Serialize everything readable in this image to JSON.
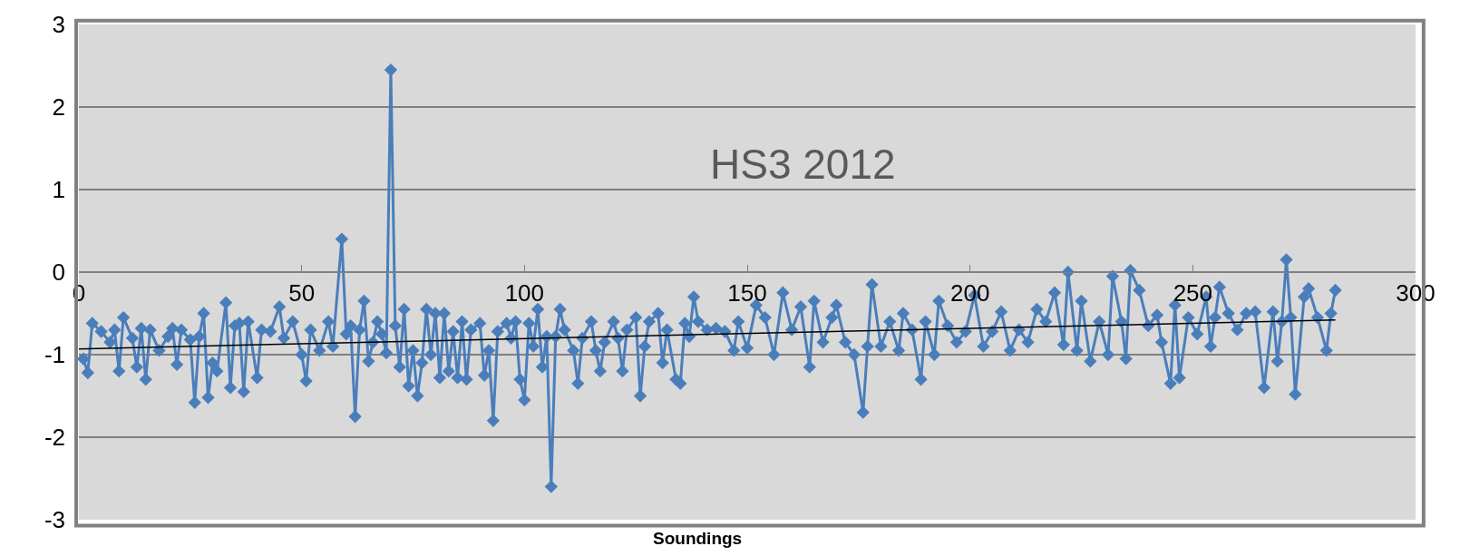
{
  "chart_data": {
    "type": "line",
    "title": "HS3 2012",
    "xlabel": "Soundings",
    "xlim": [
      0,
      300
    ],
    "xticks": [
      0,
      50,
      100,
      150,
      200,
      250,
      300
    ],
    "ylim": [
      -3,
      3
    ],
    "yticks": [
      -3,
      -2,
      -1,
      0,
      1,
      2,
      3
    ],
    "grid": "y",
    "series": [
      {
        "marker": "diamond",
        "color": "#4a7ebb",
        "x": [
          1,
          2,
          3,
          5,
          7,
          8,
          9,
          10,
          12,
          13,
          14,
          15,
          16,
          18,
          20,
          21,
          22,
          23,
          25,
          26,
          27,
          28,
          29,
          30,
          31,
          33,
          34,
          35,
          36,
          37,
          38,
          40,
          41,
          43,
          45,
          46,
          48,
          50,
          51,
          52,
          54,
          56,
          57,
          59,
          60,
          61,
          62,
          63,
          64,
          65,
          66,
          67,
          68,
          69,
          70,
          71,
          72,
          73,
          74,
          75,
          76,
          77,
          78,
          79,
          80,
          81,
          82,
          83,
          84,
          85,
          86,
          87,
          88,
          90,
          91,
          92,
          93,
          94,
          96,
          97,
          98,
          99,
          100,
          101,
          102,
          103,
          104,
          105,
          106,
          107,
          108,
          109,
          111,
          112,
          113,
          115,
          116,
          117,
          118,
          120,
          121,
          122,
          123,
          125,
          126,
          127,
          128,
          130,
          131,
          132,
          134,
          135,
          136,
          137,
          138,
          139,
          141,
          143,
          145,
          147,
          148,
          150,
          152,
          154,
          156,
          158,
          160,
          162,
          164,
          165,
          167,
          169,
          170,
          172,
          174,
          176,
          177,
          178,
          180,
          182,
          184,
          185,
          187,
          189,
          190,
          192,
          193,
          195,
          197,
          199,
          201,
          203,
          205,
          207,
          209,
          211,
          213,
          215,
          217,
          219,
          221,
          222,
          224,
          225,
          227,
          229,
          231,
          232,
          234,
          235,
          236,
          238,
          240,
          242,
          243,
          245,
          246,
          247,
          249,
          251,
          253,
          254,
          255,
          256,
          258,
          260,
          262,
          264,
          266,
          268,
          269,
          270,
          271,
          272,
          273,
          275,
          276,
          278,
          280,
          281,
          282
        ],
        "values": [
          -1.05,
          -1.22,
          -0.62,
          -0.72,
          -0.85,
          -0.7,
          -1.2,
          -0.55,
          -0.8,
          -1.15,
          -0.68,
          -1.3,
          -0.7,
          -0.95,
          -0.78,
          -0.68,
          -1.12,
          -0.7,
          -0.82,
          -1.58,
          -0.78,
          -0.5,
          -1.52,
          -1.1,
          -1.2,
          -0.37,
          -1.4,
          -0.65,
          -0.62,
          -1.45,
          -0.6,
          -1.28,
          -0.7,
          -0.72,
          -0.42,
          -0.8,
          -0.6,
          -1.0,
          -1.32,
          -0.7,
          -0.95,
          -0.6,
          -0.9,
          0.4,
          -0.75,
          -0.65,
          -1.75,
          -0.7,
          -0.35,
          -1.08,
          -0.85,
          -0.6,
          -0.75,
          -0.98,
          2.45,
          -0.65,
          -1.15,
          -0.45,
          -1.38,
          -0.95,
          -1.5,
          -1.1,
          -0.45,
          -1.0,
          -0.5,
          -1.28,
          -0.5,
          -1.2,
          -0.72,
          -1.28,
          -0.6,
          -1.3,
          -0.7,
          -0.62,
          -1.25,
          -0.95,
          -1.8,
          -0.72,
          -0.62,
          -0.8,
          -0.6,
          -1.3,
          -1.55,
          -0.62,
          -0.9,
          -0.45,
          -1.15,
          -0.78,
          -2.6,
          -0.78,
          -0.45,
          -0.7,
          -0.95,
          -1.35,
          -0.8,
          -0.6,
          -0.95,
          -1.2,
          -0.85,
          -0.6,
          -0.8,
          -1.2,
          -0.7,
          -0.55,
          -1.5,
          -0.9,
          -0.6,
          -0.5,
          -1.1,
          -0.7,
          -1.3,
          -1.35,
          -0.62,
          -0.78,
          -0.3,
          -0.6,
          -0.7,
          -0.68,
          -0.72,
          -0.95,
          -0.6,
          -0.92,
          -0.4,
          -0.55,
          -1.0,
          -0.25,
          -0.7,
          -0.42,
          -1.15,
          -0.35,
          -0.85,
          -0.55,
          -0.4,
          -0.85,
          -1.0,
          -1.7,
          -0.9,
          -0.15,
          -0.9,
          -0.6,
          -0.95,
          -0.5,
          -0.7,
          -1.3,
          -0.6,
          -1.0,
          -0.35,
          -0.65,
          -0.85,
          -0.72,
          -0.28,
          -0.9,
          -0.72,
          -0.48,
          -0.95,
          -0.7,
          -0.85,
          -0.45,
          -0.6,
          -0.25,
          -0.88,
          0.0,
          -0.95,
          -0.35,
          -1.08,
          -0.6,
          -1.0,
          -0.05,
          -0.6,
          -1.05,
          0.02,
          -0.22,
          -0.65,
          -0.52,
          -0.85,
          -1.35,
          -0.4,
          -1.28,
          -0.55,
          -0.75,
          -0.3,
          -0.9,
          -0.55,
          -0.18,
          -0.5,
          -0.7,
          -0.5,
          -0.48,
          -1.4,
          -0.48,
          -1.08,
          -0.6,
          0.15,
          -0.55,
          -1.48,
          -0.3,
          -0.2,
          -0.55,
          -0.95,
          -0.5,
          -0.22
        ]
      },
      {
        "marker": "none",
        "color": "#000000",
        "x": [
          0,
          282
        ],
        "values": [
          -0.93,
          -0.58
        ]
      }
    ]
  }
}
